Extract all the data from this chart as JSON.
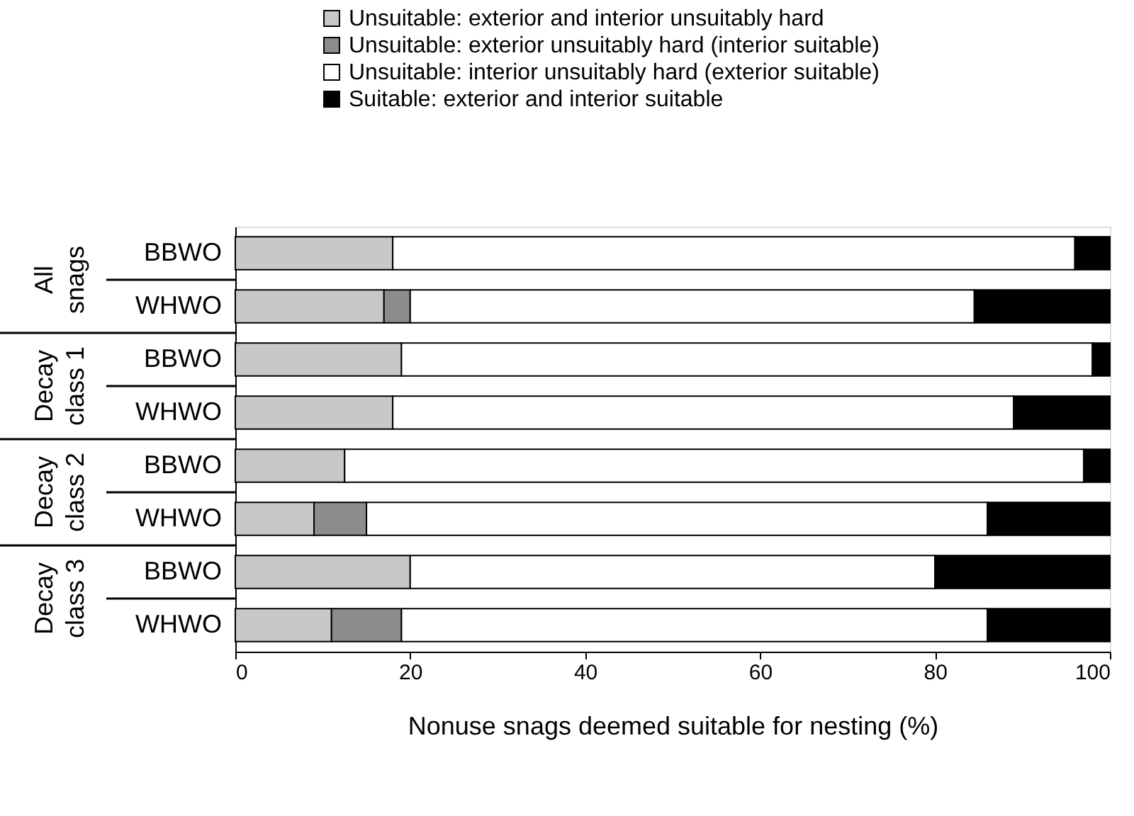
{
  "chart_data": {
    "type": "bar",
    "orientation": "horizontal",
    "stacked": true,
    "categories": [
      "BBWO",
      "WHWO",
      "BBWO",
      "WHWO",
      "BBWO",
      "WHWO",
      "BBWO",
      "WHWO"
    ],
    "series": [
      {
        "name": "Unsuitable: exterior and interior unsuitably hard",
        "color": "#c8c8c8",
        "values": [
          18,
          17,
          19,
          18,
          12.5,
          9,
          20,
          11
        ]
      },
      {
        "name": "Unsuitable: exterior unsuitably hard (interior suitable)",
        "color": "#8c8c8c",
        "values": [
          null,
          3,
          null,
          null,
          null,
          6,
          null,
          8
        ]
      },
      {
        "name": "Unsuitable: interior unsuitably hard (exterior suitable)",
        "color": "#ffffff",
        "values": [
          78,
          64.5,
          79,
          71,
          84.5,
          71,
          60,
          67
        ]
      },
      {
        "name": "Suitable: exterior and interior suitable",
        "color": "#000000",
        "values": [
          4,
          15.5,
          2,
          11,
          3,
          14,
          20,
          14
        ]
      }
    ],
    "xlabel": "Nonuse snags deemed suitable for nesting (%)",
    "xlim": [
      0,
      100
    ],
    "xticks": [
      0,
      20,
      40,
      60,
      80,
      100
    ],
    "annotations": [
      "All snags",
      "Decay class 1",
      "Decay class 2",
      "Decay class 3"
    ],
    "legend": "top",
    "grid": false
  }
}
